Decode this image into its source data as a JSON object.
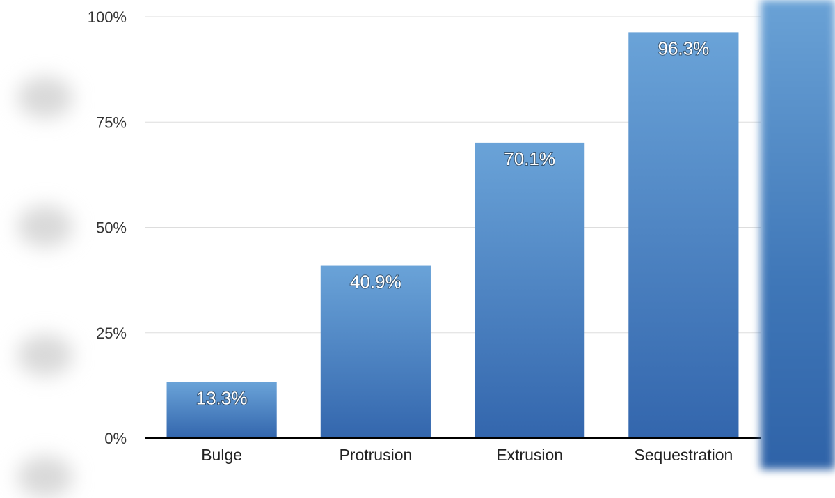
{
  "chart_data": {
    "type": "bar",
    "title": "",
    "xlabel": "",
    "ylabel": "",
    "categories": [
      "Bulge",
      "Protrusion",
      "Extrusion",
      "Sequestration"
    ],
    "values": [
      13.3,
      40.9,
      70.1,
      96.3
    ],
    "data_labels": [
      "13.3%",
      "40.9%",
      "70.1%",
      "96.3%"
    ],
    "ylim": [
      0,
      100
    ],
    "yticks": [
      0,
      25,
      50,
      75,
      100
    ],
    "ytick_labels": [
      "0%",
      "25%",
      "50%",
      "75%",
      "100%"
    ],
    "grid": true,
    "legend": "none",
    "colors": {
      "bar_top": "#6aa3d8",
      "bar_bottom": "#3366ad",
      "grid": "#dddddd",
      "axis": "#000000"
    }
  }
}
